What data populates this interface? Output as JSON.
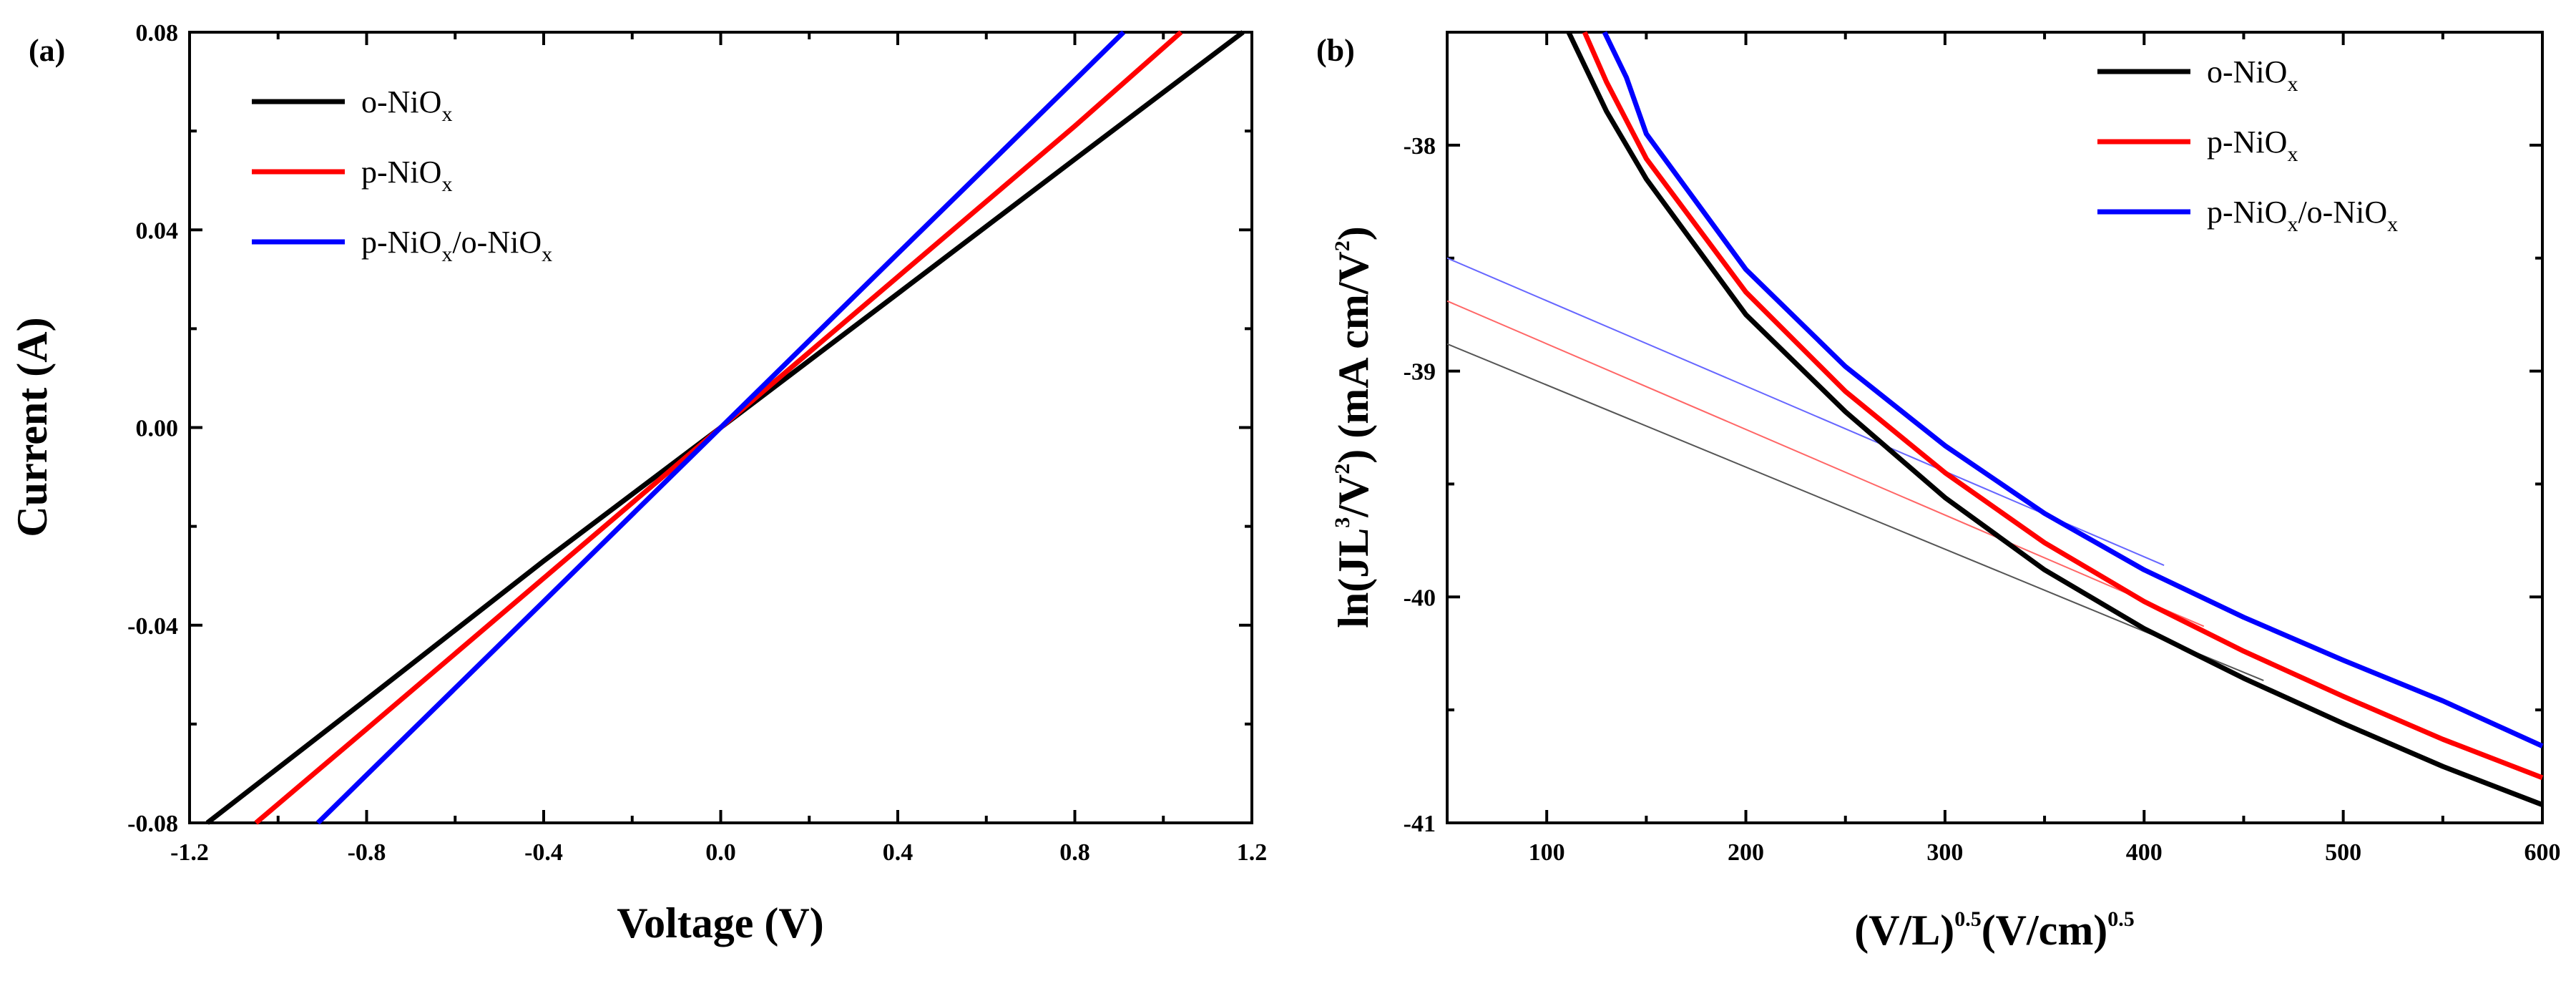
{
  "chart_data": [
    {
      "panel_label": "(a)",
      "type": "line",
      "xlabel": "Voltage (V)",
      "ylabel": "Current (A)",
      "xlim": [
        -1.2,
        1.2
      ],
      "ylim": [
        -0.08,
        0.08
      ],
      "xticks": [
        "-1.2",
        "-0.8",
        "-0.4",
        "0.0",
        "0.4",
        "0.8",
        "1.2"
      ],
      "xtick_values": [
        -1.2,
        -0.8,
        -0.4,
        0.0,
        0.4,
        0.8,
        1.2
      ],
      "yticks": [
        "-0.08",
        "-0.04",
        "0.00",
        "0.04",
        "0.08"
      ],
      "ytick_values": [
        -0.08,
        -0.04,
        0.0,
        0.04,
        0.08
      ],
      "legend_position": "top-left",
      "series": [
        {
          "name": "o-NiOx",
          "label_main": "o-NiO",
          "label_sub": "x",
          "label_tail": "",
          "label_sub2": "",
          "color": "#000000",
          "x": [
            -1.16,
            -0.8,
            -0.4,
            0.0,
            0.4,
            0.8,
            1.18
          ],
          "y": [
            -0.08,
            -0.055,
            -0.027,
            0.0,
            0.0271,
            0.0543,
            0.08
          ]
        },
        {
          "name": "p-NiOx",
          "label_main": "p-NiO",
          "label_sub": "x",
          "label_tail": "",
          "label_sub2": "",
          "color": "#ff0000",
          "x": [
            -1.05,
            -0.8,
            -0.4,
            0.0,
            0.4,
            0.8,
            1.04
          ],
          "y": [
            -0.08,
            -0.061,
            -0.0305,
            0.0,
            0.0305,
            0.061,
            0.08
          ]
        },
        {
          "name": "p-NiOx/o-NiOx",
          "label_main": "p-NiO",
          "label_sub": "x",
          "label_tail": "/o-NiO",
          "label_sub2": "x",
          "color": "#0000ff",
          "x": [
            -0.91,
            -0.8,
            -0.4,
            0.0,
            0.4,
            0.8,
            0.91
          ],
          "y": [
            -0.08,
            -0.0703,
            -0.0352,
            0.0,
            0.0352,
            0.0703,
            0.08
          ]
        }
      ]
    },
    {
      "panel_label": "(b)",
      "type": "line",
      "xlabel_main": "(V/L)",
      "xlabel_sup": "0.5",
      "xlabel_mid": "(V/cm)",
      "xlabel_sup2": "0.5",
      "ylabel_pre": "ln(JL",
      "ylabel_sup": "3",
      "ylabel_mid": "/V",
      "ylabel_sup2": "2",
      "ylabel_post": ") (mA cm/V",
      "ylabel_sup3": "2",
      "ylabel_end": ")",
      "xlim": [
        50,
        600
      ],
      "ylim": [
        -41.0,
        -37.5
      ],
      "xticks": [
        "100",
        "200",
        "300",
        "400",
        "500",
        "600"
      ],
      "xtick_values": [
        100,
        200,
        300,
        400,
        500,
        600
      ],
      "yticks": [
        "-41",
        "-40",
        "-39",
        "-38"
      ],
      "ytick_values": [
        -41,
        -40,
        -39,
        -38
      ],
      "legend_position": "top-right",
      "series": [
        {
          "name": "o-NiOx",
          "label_main": "o-NiO",
          "label_sub": "x",
          "label_tail": "",
          "label_sub2": "",
          "color": "#000000",
          "x": [
            111,
            130,
            150,
            200,
            250,
            300,
            350,
            400,
            450,
            500,
            550,
            600
          ],
          "y": [
            -37.5,
            -37.85,
            -38.15,
            -38.75,
            -39.18,
            -39.56,
            -39.88,
            -40.14,
            -40.36,
            -40.56,
            -40.75,
            -40.92
          ]
        },
        {
          "name": "p-NiOx",
          "label_main": "p-NiO",
          "label_sub": "x",
          "label_tail": "",
          "label_sub2": "",
          "color": "#ff0000",
          "x": [
            119,
            130,
            150,
            200,
            250,
            300,
            350,
            400,
            450,
            500,
            550,
            600
          ],
          "y": [
            -37.5,
            -37.72,
            -38.06,
            -38.65,
            -39.09,
            -39.45,
            -39.76,
            -40.02,
            -40.24,
            -40.44,
            -40.63,
            -40.8
          ]
        },
        {
          "name": "p-NiOx/o-NiOx",
          "label_main": "p-NiO",
          "label_sub": "x",
          "label_tail": "/o-NiO",
          "label_sub2": "x",
          "color": "#0000ff",
          "x": [
            129,
            140,
            150,
            200,
            250,
            300,
            350,
            400,
            450,
            500,
            550,
            600
          ],
          "y": [
            -37.5,
            -37.7,
            -37.95,
            -38.55,
            -38.98,
            -39.33,
            -39.63,
            -39.88,
            -40.09,
            -40.28,
            -40.46,
            -40.66
          ]
        }
      ],
      "fit_lines": [
        {
          "name": "o-NiOx fit",
          "color": "#555555",
          "x": [
            50,
            460
          ],
          "y": [
            -38.88,
            -40.37
          ]
        },
        {
          "name": "p-NiOx fit",
          "color": "#ff6666",
          "x": [
            50,
            430
          ],
          "y": [
            -38.69,
            -40.13
          ]
        },
        {
          "name": "p-NiOx/o-NiOx fit",
          "color": "#6666ff",
          "x": [
            50,
            410
          ],
          "y": [
            -38.5,
            -39.86
          ]
        }
      ]
    }
  ]
}
